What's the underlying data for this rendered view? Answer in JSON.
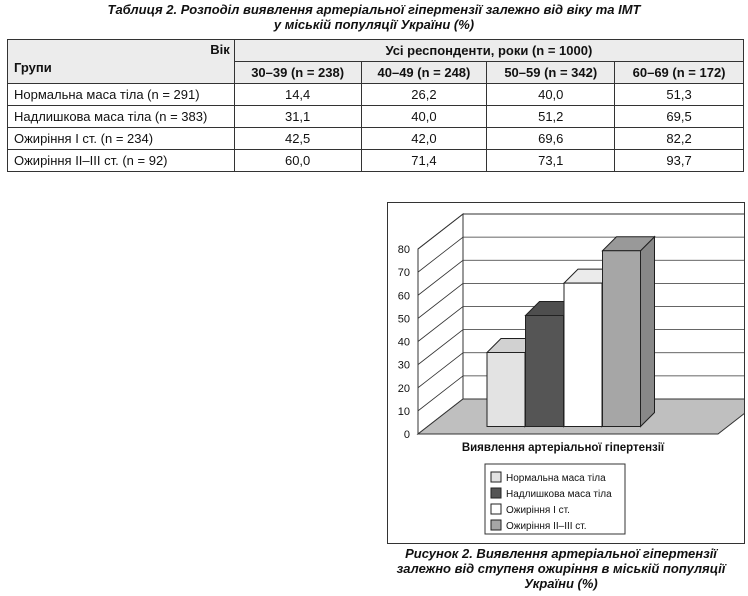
{
  "table": {
    "caption_line1": "Таблиця 2. Розподіл виявлення артеріальної гіпертензії залежно від віку та ІМТ",
    "caption_line2": "у міській популяції України (%)",
    "corner_age": "Вік",
    "corner_groups": "Групи",
    "span_header": "Усі респонденти, роки (n = 1000)",
    "age_columns": [
      "30–39 (n = 238)",
      "40–49 (n = 248)",
      "50–59 (n = 342)",
      "60–69 (n = 172)"
    ],
    "rows": [
      {
        "group": "Нормальна маса тіла (n = 291)",
        "values": [
          "14,4",
          "26,2",
          "40,0",
          "51,3"
        ]
      },
      {
        "group": "Надлишкова маса тіла (n = 383)",
        "values": [
          "31,1",
          "40,0",
          "51,2",
          "69,5"
        ]
      },
      {
        "group": "Ожиріння I ст. (n = 234)",
        "values": [
          "42,5",
          "42,0",
          "69,6",
          "82,2"
        ]
      },
      {
        "group": "Ожиріння II–III ст. (n = 92)",
        "values": [
          "60,0",
          "71,4",
          "73,1",
          "93,7"
        ]
      }
    ]
  },
  "chart_data": {
    "type": "bar",
    "categories": [
      "Виявлення артеріальної гіпертензії"
    ],
    "series": [
      {
        "name": "Нормальна маса тіла",
        "values": [
          32
        ],
        "color": "#e3e3e3"
      },
      {
        "name": "Надлишкова маса тіла",
        "values": [
          48
        ],
        "color": "#555555"
      },
      {
        "name": "Ожиріння I ст.",
        "values": [
          62
        ],
        "color": "#ffffff"
      },
      {
        "name": "Ожиріння II–III ст.",
        "values": [
          76
        ],
        "color": "#a6a6a6"
      }
    ],
    "yticks": [
      "0",
      "10",
      "20",
      "30",
      "40",
      "50",
      "60",
      "70",
      "80"
    ],
    "ylim": [
      0,
      80
    ],
    "grid": true,
    "legend": "bottom",
    "xlabel": "Виявлення артеріальної гіпертензії"
  },
  "figure": {
    "caption_line1": "Рисунок 2. Виявлення артеріальної гіпертензії",
    "caption_line2": "залежно від ступеня ожиріння в міській популяції",
    "caption_line3": "України (%)"
  }
}
